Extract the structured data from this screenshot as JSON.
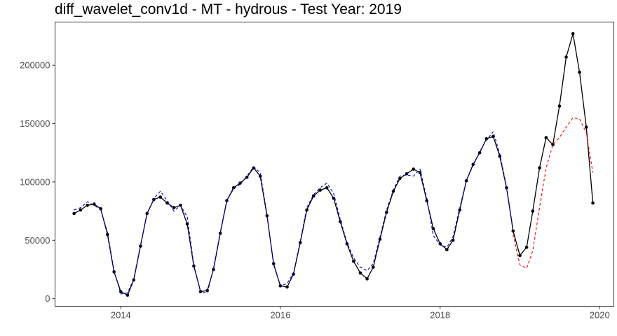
{
  "chart_data": {
    "type": "line",
    "title": "diff_wavelet_conv1d - MT - hydrous - Test Year: 2019",
    "xlabel": "",
    "ylabel": "",
    "x_axis": {
      "type": "date",
      "range": [
        "2013-03-06",
        "2020-03-06"
      ],
      "ticks": [
        "2014",
        "2016",
        "2018",
        "2020"
      ]
    },
    "y_axis": {
      "range": [
        -6500,
        237000
      ],
      "ticks": [
        0,
        50000,
        100000,
        150000,
        200000
      ],
      "tick_labels": [
        "0",
        "50000",
        "100000",
        "150000",
        "200000"
      ]
    },
    "grid": false,
    "legend": "none",
    "series": [
      {
        "style": "solid-with-points",
        "color": "#000000",
        "points": [
          [
            "2013-06-01",
            73000
          ],
          [
            "2013-07-01",
            76000
          ],
          [
            "2013-08-01",
            80000
          ],
          [
            "2013-09-01",
            81000
          ],
          [
            "2013-10-01",
            77000
          ],
          [
            "2013-11-01",
            55000
          ],
          [
            "2013-12-01",
            23000
          ],
          [
            "2014-01-01",
            6000
          ],
          [
            "2014-02-01",
            3000
          ],
          [
            "2014-03-01",
            16000
          ],
          [
            "2014-04-01",
            45000
          ],
          [
            "2014-05-01",
            73000
          ],
          [
            "2014-06-01",
            85000
          ],
          [
            "2014-07-01",
            87000
          ],
          [
            "2014-08-01",
            82000
          ],
          [
            "2014-09-01",
            78000
          ],
          [
            "2014-10-01",
            80000
          ],
          [
            "2014-11-01",
            64000
          ],
          [
            "2014-12-01",
            28000
          ],
          [
            "2015-01-01",
            6000
          ],
          [
            "2015-02-01",
            7000
          ],
          [
            "2015-03-01",
            25000
          ],
          [
            "2015-04-01",
            56000
          ],
          [
            "2015-05-01",
            84000
          ],
          [
            "2015-06-01",
            95000
          ],
          [
            "2015-07-01",
            99000
          ],
          [
            "2015-08-01",
            104000
          ],
          [
            "2015-09-01",
            112000
          ],
          [
            "2015-10-01",
            105000
          ],
          [
            "2015-11-01",
            71000
          ],
          [
            "2015-12-01",
            30000
          ],
          [
            "2016-01-01",
            11000
          ],
          [
            "2016-02-01",
            10000
          ],
          [
            "2016-03-01",
            21000
          ],
          [
            "2016-04-01",
            48000
          ],
          [
            "2016-05-01",
            76000
          ],
          [
            "2016-06-01",
            88000
          ],
          [
            "2016-07-01",
            93000
          ],
          [
            "2016-08-01",
            95000
          ],
          [
            "2016-09-01",
            86000
          ],
          [
            "2016-10-01",
            66000
          ],
          [
            "2016-11-01",
            47000
          ],
          [
            "2016-12-01",
            32000
          ],
          [
            "2017-01-01",
            22000
          ],
          [
            "2017-02-01",
            17000
          ],
          [
            "2017-03-01",
            27000
          ],
          [
            "2017-04-01",
            51000
          ],
          [
            "2017-05-01",
            74000
          ],
          [
            "2017-06-01",
            92000
          ],
          [
            "2017-07-01",
            103000
          ],
          [
            "2017-08-01",
            107000
          ],
          [
            "2017-09-01",
            111000
          ],
          [
            "2017-10-01",
            108000
          ],
          [
            "2017-11-01",
            84000
          ],
          [
            "2017-12-01",
            60000
          ],
          [
            "2018-01-01",
            47000
          ],
          [
            "2018-02-01",
            42000
          ],
          [
            "2018-03-01",
            50000
          ],
          [
            "2018-04-01",
            76000
          ],
          [
            "2018-05-01",
            101000
          ],
          [
            "2018-06-01",
            115000
          ],
          [
            "2018-07-01",
            125000
          ],
          [
            "2018-08-01",
            137000
          ],
          [
            "2018-09-01",
            139000
          ],
          [
            "2018-10-01",
            122000
          ],
          [
            "2018-11-01",
            95000
          ],
          [
            "2018-12-01",
            58000
          ],
          [
            "2019-01-01",
            37000
          ],
          [
            "2019-02-01",
            44000
          ],
          [
            "2019-03-01",
            75000
          ],
          [
            "2019-04-01",
            112000
          ],
          [
            "2019-05-01",
            138000
          ],
          [
            "2019-06-01",
            132000
          ],
          [
            "2019-07-01",
            165000
          ],
          [
            "2019-08-01",
            207000
          ],
          [
            "2019-09-01",
            227000
          ],
          [
            "2019-10-01",
            194000
          ],
          [
            "2019-11-01",
            147000
          ],
          [
            "2019-12-01",
            82000
          ]
        ]
      },
      {
        "style": "dashed",
        "color": "#0000cc",
        "points": [
          [
            "2013-06-01",
            76000
          ],
          [
            "2013-07-01",
            78000
          ],
          [
            "2013-08-01",
            83000
          ],
          [
            "2013-09-01",
            80000
          ],
          [
            "2013-10-01",
            76000
          ],
          [
            "2013-11-01",
            57000
          ],
          [
            "2013-12-01",
            24000
          ],
          [
            "2014-01-01",
            4000
          ],
          [
            "2014-02-01",
            5000
          ],
          [
            "2014-03-01",
            17000
          ],
          [
            "2014-04-01",
            46000
          ],
          [
            "2014-05-01",
            72000
          ],
          [
            "2014-06-01",
            86000
          ],
          [
            "2014-07-01",
            92000
          ],
          [
            "2014-08-01",
            84000
          ],
          [
            "2014-09-01",
            75000
          ],
          [
            "2014-10-01",
            80000
          ],
          [
            "2014-11-01",
            70000
          ],
          [
            "2014-12-01",
            29000
          ],
          [
            "2015-01-01",
            6000
          ],
          [
            "2015-02-01",
            5000
          ],
          [
            "2015-03-01",
            26000
          ],
          [
            "2015-04-01",
            57000
          ],
          [
            "2015-05-01",
            84000
          ],
          [
            "2015-06-01",
            94000
          ],
          [
            "2015-07-01",
            98000
          ],
          [
            "2015-08-01",
            105000
          ],
          [
            "2015-09-01",
            113000
          ],
          [
            "2015-10-01",
            108000
          ],
          [
            "2015-11-01",
            72000
          ],
          [
            "2015-12-01",
            29000
          ],
          [
            "2016-01-01",
            11000
          ],
          [
            "2016-02-01",
            13000
          ],
          [
            "2016-03-01",
            22000
          ],
          [
            "2016-04-01",
            49000
          ],
          [
            "2016-05-01",
            78000
          ],
          [
            "2016-06-01",
            89000
          ],
          [
            "2016-07-01",
            95000
          ],
          [
            "2016-08-01",
            99000
          ],
          [
            "2016-09-01",
            90000
          ],
          [
            "2016-10-01",
            68000
          ],
          [
            "2016-11-01",
            48000
          ],
          [
            "2016-12-01",
            35000
          ],
          [
            "2017-01-01",
            27000
          ],
          [
            "2017-02-01",
            24000
          ],
          [
            "2017-03-01",
            30000
          ],
          [
            "2017-04-01",
            53000
          ],
          [
            "2017-05-01",
            76000
          ],
          [
            "2017-06-01",
            93000
          ],
          [
            "2017-07-01",
            105000
          ],
          [
            "2017-08-01",
            106000
          ],
          [
            "2017-09-01",
            105000
          ],
          [
            "2017-10-01",
            111000
          ],
          [
            "2017-11-01",
            86000
          ],
          [
            "2017-12-01",
            54000
          ],
          [
            "2018-01-01",
            46000
          ],
          [
            "2018-02-01",
            44000
          ],
          [
            "2018-03-01",
            53000
          ],
          [
            "2018-04-01",
            78000
          ],
          [
            "2018-05-01",
            101000
          ],
          [
            "2018-06-01",
            114000
          ],
          [
            "2018-07-01",
            126000
          ],
          [
            "2018-08-01",
            136000
          ],
          [
            "2018-09-01",
            143000
          ],
          [
            "2018-10-01",
            124000
          ],
          [
            "2018-11-01",
            96000
          ],
          [
            "2018-12-01",
            59000
          ]
        ]
      },
      {
        "style": "dashed",
        "color": "#ff0000",
        "points": [
          [
            "2018-12-01",
            55000
          ],
          [
            "2019-01-01",
            29000
          ],
          [
            "2019-02-01",
            26000
          ],
          [
            "2019-03-01",
            41000
          ],
          [
            "2019-04-01",
            78000
          ],
          [
            "2019-05-01",
            112000
          ],
          [
            "2019-06-01",
            132000
          ],
          [
            "2019-07-01",
            138000
          ],
          [
            "2019-08-01",
            147000
          ],
          [
            "2019-09-01",
            155000
          ],
          [
            "2019-10-01",
            154000
          ],
          [
            "2019-11-01",
            142000
          ],
          [
            "2019-12-01",
            108000
          ]
        ]
      }
    ]
  }
}
